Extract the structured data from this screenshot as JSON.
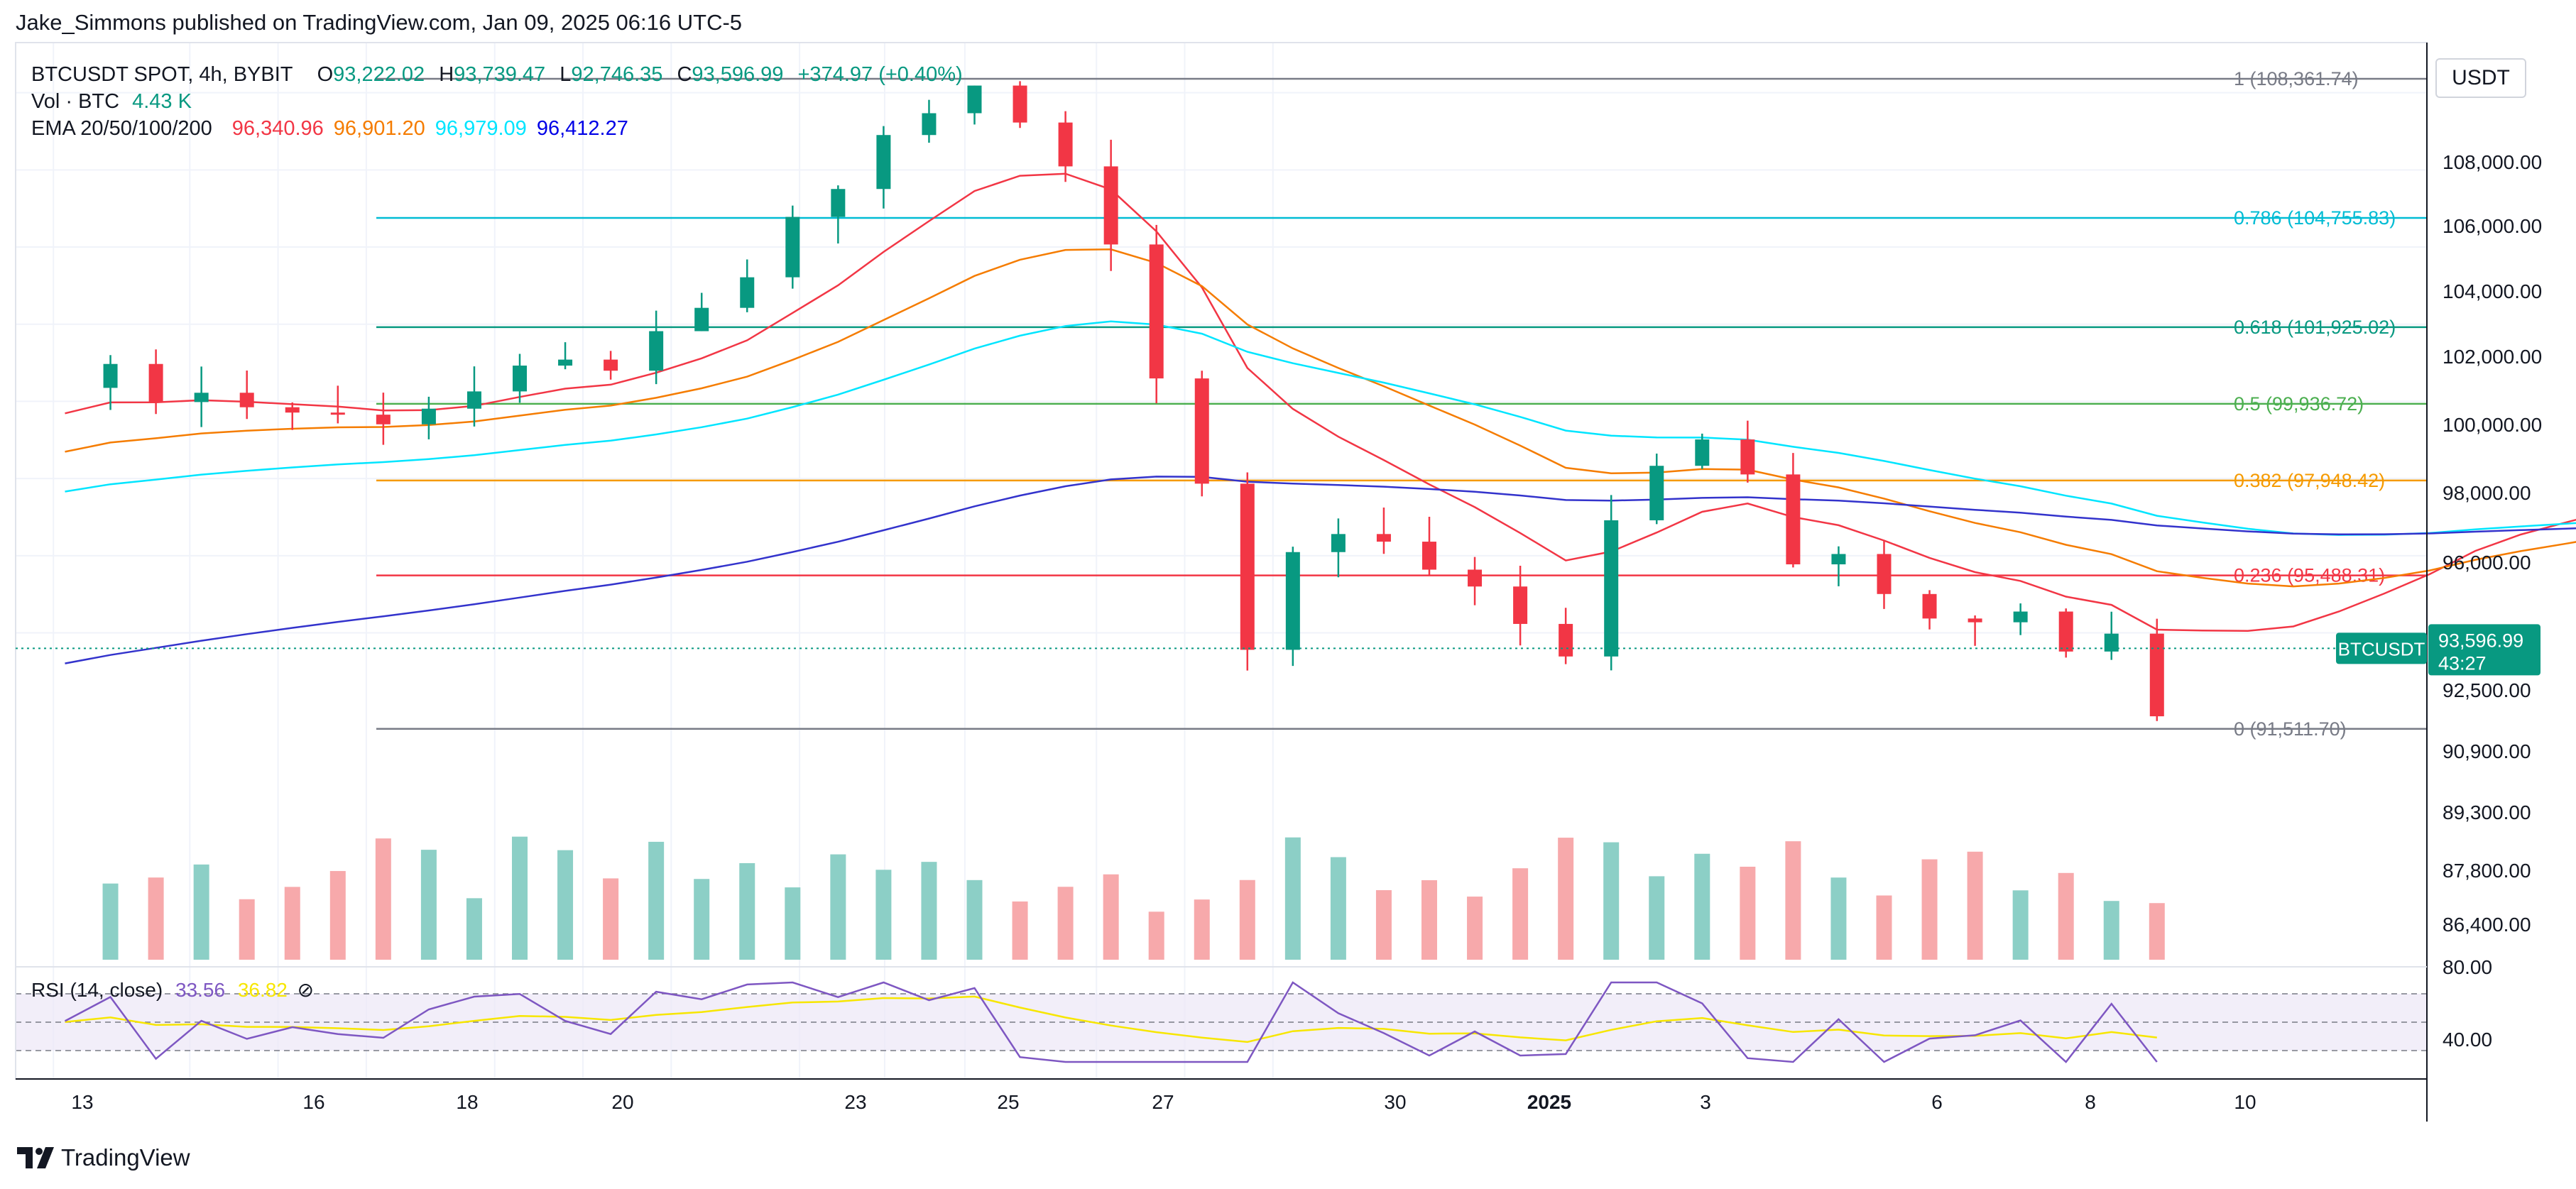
{
  "publisher": "Jake_Simmons published on TradingView.com, Jan 09, 2025 06:16 UTC-5",
  "legend": {
    "symbol": "BTCUSDT SPOT, 4h, BYBIT",
    "ohlc": [
      {
        "k": "O",
        "v": "93,222.02"
      },
      {
        "k": "H",
        "v": "93,739.47"
      },
      {
        "k": "L",
        "v": "92,746.35"
      },
      {
        "k": "C",
        "v": "93,596.99"
      }
    ],
    "change": "+374.97 (+0.40%)",
    "vol_label": "Vol · BTC",
    "vol_value": "4.43 K",
    "ema_label": "EMA 20/50/100/200",
    "ema_values": [
      "96,340.96",
      "96,901.20",
      "96,979.09",
      "96,412.27"
    ]
  },
  "rsi_legend": {
    "label": "RSI (14, close)",
    "value": "33.56",
    "value2": "36.82",
    "icon": "hidden-eye-icon"
  },
  "currency": "USDT",
  "price_label": {
    "symbol": "BTCUSDT",
    "price": "93,596.99",
    "countdown": "43:27"
  },
  "brand": "TradingView",
  "colors": {
    "up": "#089981",
    "down": "#f23645",
    "upVol": "#8ccfc6",
    "downVol": "#f7a9ab",
    "ema20": "#f23645",
    "ema50": "#f57c00",
    "ema100": "#00e5ff",
    "ema200": "#3333cc",
    "rsi": "#7e57c2",
    "rsi_ma": "#f7e600"
  },
  "chart_data": {
    "type": "candlestick",
    "yaxis_ticks": [
      "108,000.00",
      "106,000.00",
      "104,000.00",
      "102,000.00",
      "100,000.00",
      "98,000.00",
      "96,000.00",
      "94,000.00",
      "92,500.00",
      "90,900.00",
      "89,300.00",
      "87,800.00",
      "86,400.00",
      "80.00",
      "40.00"
    ],
    "xaxis_ticks": [
      "13",
      "16",
      "18",
      "20",
      "23",
      "25",
      "27",
      "30",
      "2025",
      "3",
      "6",
      "8",
      "10"
    ],
    "fib_levels": [
      {
        "label": "1 (108,361.74)",
        "price": 108361.74,
        "color": "#787b86"
      },
      {
        "label": "0.786 (104,755.83)",
        "price": 104755.83,
        "color": "#00bcd4"
      },
      {
        "label": "0.618 (101,925.02)",
        "price": 101925.02,
        "color": "#089981"
      },
      {
        "label": "0.5 (99,936.72)",
        "price": 99936.72,
        "color": "#4caf50"
      },
      {
        "label": "0.382 (97,948.42)",
        "price": 97948.42,
        "color": "#f59a00"
      },
      {
        "label": "0.236 (95,488.31)",
        "price": 95488.31,
        "color": "#f23645"
      },
      {
        "label": "0 (91,511.70)",
        "price": 91511.7,
        "color": "#787b86"
      }
    ],
    "close_path": [
      [
        0,
        100800
      ],
      [
        6,
        99500
      ],
      [
        9,
        100300
      ],
      [
        13,
        101500
      ],
      [
        16,
        105000
      ],
      [
        18,
        107500
      ],
      [
        19.5,
        108000
      ],
      [
        20.5,
        107000
      ],
      [
        22,
        105000
      ],
      [
        23.2,
        101000
      ],
      [
        24.2,
        98000
      ],
      [
        25,
        93000
      ],
      [
        26,
        96500
      ],
      [
        27.5,
        97000
      ],
      [
        28.5,
        96000
      ],
      [
        29.5,
        94500
      ],
      [
        30.5,
        95500
      ],
      [
        31.5,
        93200
      ],
      [
        32.5,
        93800
      ],
      [
        33,
        98000
      ],
      [
        34,
        98300
      ],
      [
        35.5,
        98800
      ],
      [
        36.3,
        96000
      ],
      [
        37.5,
        95500
      ],
      [
        38.3,
        96500
      ],
      [
        39,
        93800
      ],
      [
        40.5,
        94200
      ],
      [
        41.5,
        95000
      ],
      [
        42.5,
        93300
      ],
      [
        43.5,
        93800
      ],
      [
        44.5,
        92000
      ],
      [
        45.5,
        94000
      ],
      [
        46,
        94200
      ],
      [
        47,
        94500
      ],
      [
        48,
        95500
      ],
      [
        49,
        97000
      ],
      [
        50.5,
        97000
      ],
      [
        51.5,
        98500
      ],
      [
        52.5,
        98000
      ],
      [
        53.5,
        97500
      ],
      [
        54.5,
        98600
      ],
      [
        55.5,
        101500
      ],
      [
        56.5,
        101800
      ],
      [
        57,
        101000
      ],
      [
        57.5,
        97000
      ],
      [
        58,
        96500
      ],
      [
        58.5,
        94800
      ],
      [
        59,
        93800
      ],
      [
        59.5,
        94200
      ],
      [
        60,
        93597
      ]
    ],
    "volume_range": [
      85000,
      92000
    ],
    "rsi_bands": [
      70,
      30
    ],
    "rsi_range": [
      20,
      80
    ]
  }
}
